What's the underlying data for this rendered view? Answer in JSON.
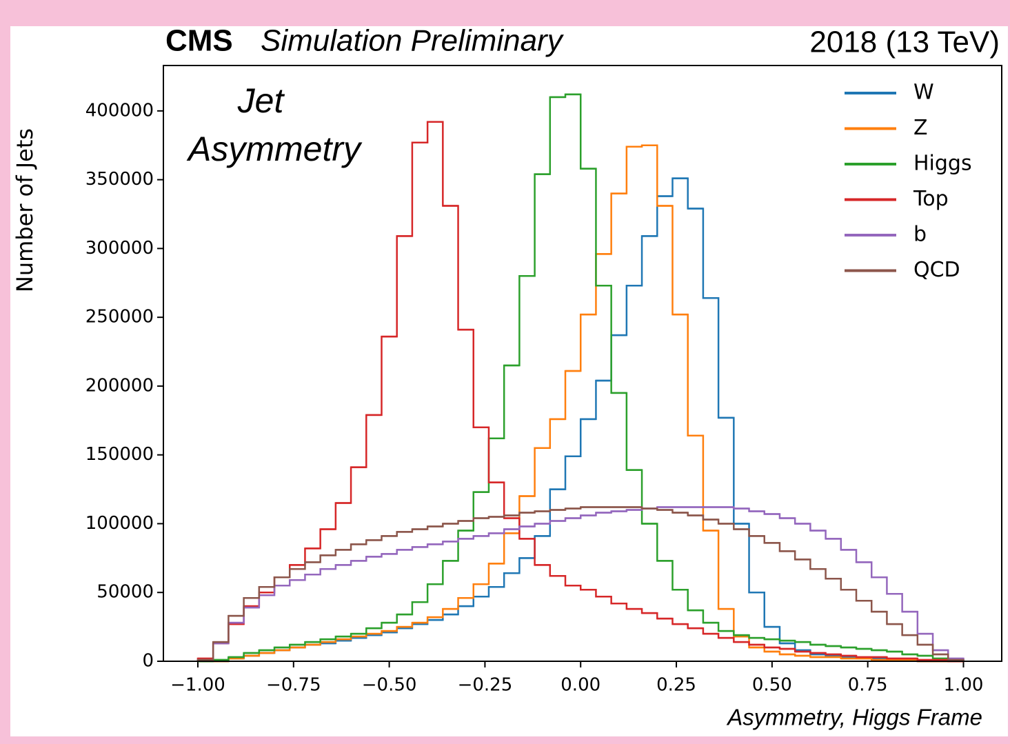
{
  "chart_data": {
    "type": "histogram",
    "title": "CMS",
    "subtitle": "Simulation Preliminary",
    "top_right_label": "2018 (13 TeV)",
    "annotation_lines": [
      "Jet",
      "Asymmetry"
    ],
    "ylabel": "Number of Jets",
    "xlabel": "Asymmetry, Higgs Frame",
    "grid": false,
    "legend": "upper right",
    "histtype": "step",
    "xlim": [
      -1.09,
      1.1
    ],
    "ylim": [
      0,
      433000
    ],
    "xticks": [
      {
        "value": -1,
        "label": "−1.00"
      },
      {
        "value": -0.75,
        "label": "−0.75"
      },
      {
        "value": -0.5,
        "label": "−0.50"
      },
      {
        "value": -0.25,
        "label": "−0.25"
      },
      {
        "value": 0,
        "label": "0.00"
      },
      {
        "value": 0.25,
        "label": "0.25"
      },
      {
        "value": 0.5,
        "label": "0.50"
      },
      {
        "value": 0.75,
        "label": "0.75"
      },
      {
        "value": 1,
        "label": "1.00"
      }
    ],
    "yticks": [
      0,
      50000,
      100000,
      150000,
      200000,
      250000,
      300000,
      350000,
      400000
    ],
    "bins": [
      -1,
      -0.96,
      -0.92,
      -0.88,
      -0.84,
      -0.8,
      -0.76,
      -0.72,
      -0.68,
      -0.64,
      -0.6,
      -0.56,
      -0.52,
      -0.48,
      -0.44,
      -0.4,
      -0.36,
      -0.32,
      -0.28,
      -0.24,
      -0.2,
      -0.16,
      -0.12,
      -0.08,
      -0.04,
      0,
      0.04,
      0.08,
      0.12,
      0.16,
      0.2,
      0.24,
      0.28,
      0.32,
      0.36,
      0.4,
      0.44,
      0.48,
      0.52,
      0.56,
      0.6,
      0.64,
      0.68,
      0.72,
      0.76,
      0.8,
      0.84,
      0.88,
      0.92,
      0.96,
      1
    ],
    "series": [
      {
        "name": "W",
        "color": "#1f77b4",
        "values": [
          0,
          0,
          2000,
          4000,
          6000,
          8000,
          10000,
          12000,
          13000,
          15000,
          17000,
          19000,
          21000,
          24000,
          27000,
          30000,
          34000,
          40000,
          47000,
          54000,
          64000,
          75000,
          91000,
          125000,
          149000,
          176000,
          204000,
          237000,
          273000,
          309000,
          338000,
          351000,
          329000,
          264000,
          177000,
          100000,
          50000,
          25000,
          13000,
          8000,
          5000,
          4000,
          3000,
          2000,
          2000,
          1000,
          1000,
          0,
          0,
          0
        ]
      },
      {
        "name": "Z",
        "color": "#ff7f0e",
        "values": [
          0,
          0,
          2000,
          4000,
          6000,
          8000,
          10000,
          12000,
          14000,
          16000,
          18000,
          20000,
          22000,
          25000,
          28000,
          32000,
          38000,
          46000,
          56000,
          71000,
          93000,
          120000,
          155000,
          176000,
          211000,
          252000,
          296000,
          340000,
          374000,
          375000,
          331000,
          252000,
          164000,
          95000,
          38000,
          18000,
          10000,
          7000,
          5000,
          4000,
          3000,
          3000,
          2000,
          2000,
          1000,
          1000,
          1000,
          0,
          0,
          0
        ]
      },
      {
        "name": "Higgs",
        "color": "#2ca02c",
        "values": [
          0,
          1000,
          3000,
          6000,
          8000,
          10000,
          12000,
          14000,
          16000,
          18000,
          20000,
          24000,
          28000,
          34000,
          43000,
          56000,
          73000,
          95000,
          123000,
          162000,
          215000,
          280000,
          354000,
          410000,
          412000,
          358000,
          273000,
          195000,
          139000,
          100000,
          73000,
          52000,
          37000,
          28000,
          22000,
          19000,
          17000,
          16000,
          15000,
          14000,
          12000,
          11000,
          10000,
          9000,
          8000,
          7000,
          5000,
          4000,
          2000,
          1000
        ]
      },
      {
        "name": "Top",
        "color": "#d62728",
        "values": [
          2000,
          13000,
          27000,
          40000,
          50000,
          61000,
          70000,
          82000,
          96000,
          115000,
          141000,
          179000,
          236000,
          309000,
          377000,
          392000,
          331000,
          241000,
          170000,
          130000,
          104000,
          89000,
          70000,
          62000,
          55000,
          52000,
          47000,
          42000,
          38000,
          35000,
          31000,
          27000,
          24000,
          20000,
          17000,
          14000,
          12000,
          10000,
          9000,
          7000,
          6000,
          5000,
          4000,
          3000,
          3000,
          2000,
          2000,
          1000,
          1000,
          0
        ]
      },
      {
        "name": "b",
        "color": "#9467bd",
        "values": [
          1000,
          13000,
          28000,
          39000,
          48000,
          55000,
          59000,
          63000,
          67000,
          70000,
          73000,
          76000,
          78000,
          81000,
          83000,
          85000,
          87000,
          89000,
          91000,
          93000,
          96000,
          98000,
          100000,
          102000,
          104000,
          106000,
          108000,
          109000,
          110000,
          111000,
          112000,
          112000,
          112000,
          112000,
          112000,
          111000,
          109000,
          107000,
          104000,
          100000,
          95000,
          89000,
          81000,
          72000,
          61000,
          49000,
          36000,
          20000,
          8000,
          2000
        ]
      },
      {
        "name": "QCD",
        "color": "#8c564b",
        "values": [
          1000,
          14000,
          33000,
          46000,
          54000,
          61000,
          67000,
          72000,
          77000,
          81000,
          85000,
          88000,
          91000,
          94000,
          96000,
          98000,
          100000,
          102000,
          104000,
          105000,
          106000,
          108000,
          109000,
          110000,
          111000,
          112000,
          112000,
          112000,
          112000,
          111000,
          110000,
          108000,
          106000,
          103000,
          100000,
          96000,
          91000,
          86000,
          80000,
          74000,
          67000,
          60000,
          52000,
          44000,
          36000,
          27000,
          19000,
          12000,
          5000,
          1000
        ]
      }
    ]
  }
}
